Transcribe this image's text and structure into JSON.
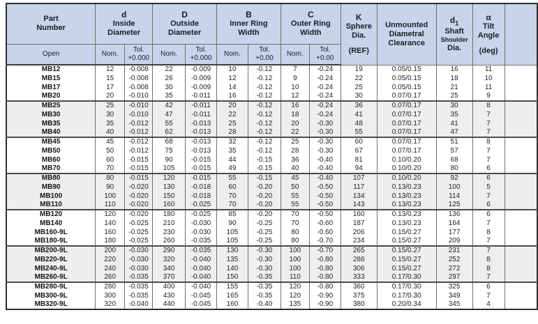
{
  "table": {
    "columns": {
      "part": {
        "title_line1": "Part",
        "title_line2": "Number",
        "sub": "Open"
      },
      "d": {
        "symbol": "d",
        "name_line1": "Inside",
        "name_line2": "Diameter",
        "nom": "Nom.",
        "tol_line1": "Tol.",
        "tol_line2": "+0.000"
      },
      "od": {
        "symbol": "D",
        "name_line1": "Outside",
        "name_line2": "Diameter",
        "nom": "Nom.",
        "tol_line1": "Tol.",
        "tol_line2": "+0.000"
      },
      "b": {
        "symbol": "B",
        "name_line1": "Inner Ring",
        "name_line2": "Width",
        "nom": "Nom.",
        "tol_line1": "Tol.",
        "tol_line2": "+0.00"
      },
      "c": {
        "symbol": "C",
        "name_line1": "Outer Ring",
        "name_line2": "Width",
        "nom": "Nom.",
        "tol_line1": "Tol.",
        "tol_line2": "+0.00"
      },
      "k": {
        "symbol": "K",
        "line1": "Sphere",
        "line2": "Dia.",
        "ref": "(REF)"
      },
      "clearance": {
        "line1": "Unmounted",
        "line2": "Diametral",
        "line3": "Clearance"
      },
      "d1": {
        "symbol": "d",
        "subscript": "1",
        "line1": "Shaft",
        "line2": "Shoulder",
        "line3": "Dia."
      },
      "alpha": {
        "symbol": "α",
        "line1": "Tilt",
        "line2": "Angle",
        "unit": "(deg)"
      }
    },
    "cell_keys": [
      "part",
      "d_nom",
      "d_tol",
      "od_nom",
      "od_tol",
      "b_nom",
      "b_tol",
      "c_nom",
      "c_tol",
      "k",
      "clearance",
      "d1",
      "alpha",
      "blank"
    ],
    "rows": [
      {
        "part": "MB12",
        "d_nom": "12",
        "d_tol": "-0.008",
        "od_nom": "22",
        "od_tol": "-0.009",
        "b_nom": "10",
        "b_tol": "-0.12",
        "c_nom": "7",
        "c_tol": "-0.24",
        "k": "19",
        "clearance": "0.05/0.15",
        "d1": "16",
        "alpha": "11",
        "blank": "",
        "shaded": false,
        "group_start": false
      },
      {
        "part": "MB15",
        "d_nom": "15",
        "d_tol": "-0.008",
        "od_nom": "26",
        "od_tol": "-0.009",
        "b_nom": "12",
        "b_tol": "-0.12",
        "c_nom": "9",
        "c_tol": "-0.24",
        "k": "22",
        "clearance": "0.05/0.15",
        "d1": "18",
        "alpha": "10",
        "blank": "",
        "shaded": false,
        "group_start": false
      },
      {
        "part": "MB17",
        "d_nom": "17",
        "d_tol": "-0.008",
        "od_nom": "30",
        "od_tol": "-0.009",
        "b_nom": "14",
        "b_tol": "-0.12",
        "c_nom": "10",
        "c_tol": "-0.24",
        "k": "25",
        "clearance": "0.05/0.15",
        "d1": "21",
        "alpha": "11",
        "blank": "",
        "shaded": false,
        "group_start": false
      },
      {
        "part": "MB20",
        "d_nom": "20",
        "d_tol": "-0.010",
        "od_nom": "35",
        "od_tol": "-0.011",
        "b_nom": "16",
        "b_tol": "-0.12",
        "c_nom": "12",
        "c_tol": "-0.24",
        "k": "30",
        "clearance": "0.07/0.17",
        "d1": "25",
        "alpha": "9",
        "blank": "",
        "shaded": false,
        "group_start": false
      },
      {
        "part": "MB25",
        "d_nom": "25",
        "d_tol": "-0.010",
        "od_nom": "42",
        "od_tol": "-0.011",
        "b_nom": "20",
        "b_tol": "-0.12",
        "c_nom": "16",
        "c_tol": "-0.24",
        "k": "36",
        "clearance": "0.07/0.17",
        "d1": "30",
        "alpha": "8",
        "blank": "",
        "shaded": true,
        "group_start": true
      },
      {
        "part": "MB30",
        "d_nom": "30",
        "d_tol": "-0.010",
        "od_nom": "47",
        "od_tol": "-0.011",
        "b_nom": "22",
        "b_tol": "-0.12",
        "c_nom": "18",
        "c_tol": "-0.24",
        "k": "41",
        "clearance": "0.07/0.17",
        "d1": "35",
        "alpha": "7",
        "blank": "",
        "shaded": true,
        "group_start": false
      },
      {
        "part": "MB35",
        "d_nom": "35",
        "d_tol": "-0.012",
        "od_nom": "55",
        "od_tol": "-0.013",
        "b_nom": "25",
        "b_tol": "-0.12",
        "c_nom": "20",
        "c_tol": "-0.30",
        "k": "48",
        "clearance": "0.07/0.17",
        "d1": "41",
        "alpha": "7",
        "blank": "",
        "shaded": true,
        "group_start": false
      },
      {
        "part": "MB40",
        "d_nom": "40",
        "d_tol": "-0.012",
        "od_nom": "62",
        "od_tol": "-0.013",
        "b_nom": "28",
        "b_tol": "-0.12",
        "c_nom": "22",
        "c_tol": "-0.30",
        "k": "55",
        "clearance": "0.07/0.17",
        "d1": "47",
        "alpha": "7",
        "blank": "",
        "shaded": true,
        "group_start": false
      },
      {
        "part": "MB45",
        "d_nom": "45",
        "d_tol": "-0.012",
        "od_nom": "68",
        "od_tol": "-0.013",
        "b_nom": "32",
        "b_tol": "-0.12",
        "c_nom": "25",
        "c_tol": "-0.30",
        "k": "60",
        "clearance": "0.07/0.17",
        "d1": "51",
        "alpha": "8",
        "blank": "",
        "shaded": false,
        "group_start": true
      },
      {
        "part": "MB50",
        "d_nom": "50",
        "d_tol": "-0.012",
        "od_nom": "75",
        "od_tol": "-0.013",
        "b_nom": "35",
        "b_tol": "-0.12",
        "c_nom": "28",
        "c_tol": "-0.30",
        "k": "67",
        "clearance": "0.07/0.17",
        "d1": "57",
        "alpha": "7",
        "blank": "",
        "shaded": false,
        "group_start": false
      },
      {
        "part": "MB60",
        "d_nom": "60",
        "d_tol": "-0.015",
        "od_nom": "90",
        "od_tol": "-0.015",
        "b_nom": "44",
        "b_tol": "-0.15",
        "c_nom": "36",
        "c_tol": "-0.40",
        "k": "81",
        "clearance": "0.10/0.20",
        "d1": "68",
        "alpha": "7",
        "blank": "",
        "shaded": false,
        "group_start": false
      },
      {
        "part": "MB70",
        "d_nom": "70",
        "d_tol": "-0.015",
        "od_nom": "105",
        "od_tol": "-0.015",
        "b_nom": "49",
        "b_tol": "-0.15",
        "c_nom": "40",
        "c_tol": "-0.40",
        "k": "94",
        "clearance": "0.10/0.20",
        "d1": "80",
        "alpha": "6",
        "blank": "",
        "shaded": false,
        "group_start": false
      },
      {
        "part": "MB80",
        "d_nom": "80",
        "d_tol": "-0.015",
        "od_nom": "120",
        "od_tol": "-0.015",
        "b_nom": "55",
        "b_tol": "-0.15",
        "c_nom": "45",
        "c_tol": "-0.40",
        "k": "107",
        "clearance": "0.10/0.20",
        "d1": "92",
        "alpha": "6",
        "blank": "",
        "shaded": true,
        "group_start": true
      },
      {
        "part": "MB90",
        "d_nom": "90",
        "d_tol": "-0.020",
        "od_nom": "130",
        "od_tol": "-0.018",
        "b_nom": "60",
        "b_tol": "-0.20",
        "c_nom": "50",
        "c_tol": "-0.50",
        "k": "117",
        "clearance": "0.13/0.23",
        "d1": "100",
        "alpha": "5",
        "blank": "",
        "shaded": true,
        "group_start": false
      },
      {
        "part": "MB100",
        "d_nom": "100",
        "d_tol": "-0.020",
        "od_nom": "150",
        "od_tol": "-0.018",
        "b_nom": "70",
        "b_tol": "-0.20",
        "c_nom": "55",
        "c_tol": "-0.50",
        "k": "134",
        "clearance": "0.13/0.23",
        "d1": "114",
        "alpha": "7",
        "blank": "",
        "shaded": true,
        "group_start": false
      },
      {
        "part": "MB110",
        "d_nom": "110",
        "d_tol": "-0.020",
        "od_nom": "160",
        "od_tol": "-0.025",
        "b_nom": "70",
        "b_tol": "-0.20",
        "c_nom": "55",
        "c_tol": "-0.50",
        "k": "143",
        "clearance": "0.13/0.23",
        "d1": "125",
        "alpha": "6",
        "blank": "",
        "shaded": true,
        "group_start": false
      },
      {
        "part": "MB120",
        "d_nom": "120",
        "d_tol": "-0.020",
        "od_nom": "180",
        "od_tol": "-0.025",
        "b_nom": "85",
        "b_tol": "-0.20",
        "c_nom": "70",
        "c_tol": "-0.50",
        "k": "160",
        "clearance": "0.13/0.23",
        "d1": "136",
        "alpha": "6",
        "blank": "",
        "shaded": false,
        "group_start": true
      },
      {
        "part": "MB140",
        "d_nom": "140",
        "d_tol": "-0.025",
        "od_nom": "210",
        "od_tol": "-0.030",
        "b_nom": "90",
        "b_tol": "-0.25",
        "c_nom": "70",
        "c_tol": "-0.60",
        "k": "187",
        "clearance": "0.13/0.23",
        "d1": "164",
        "alpha": "7",
        "blank": "",
        "shaded": false,
        "group_start": false
      },
      {
        "part": "MB160-9L",
        "d_nom": "160",
        "d_tol": "-0.025",
        "od_nom": "230",
        "od_tol": "-0.030",
        "b_nom": "105",
        "b_tol": "-0.25",
        "c_nom": "80",
        "c_tol": "-0.60",
        "k": "206",
        "clearance": "0.15/0.27",
        "d1": "177",
        "alpha": "8",
        "blank": "",
        "shaded": false,
        "group_start": false
      },
      {
        "part": "MB180-9L",
        "d_nom": "180",
        "d_tol": "-0.025",
        "od_nom": "260",
        "od_tol": "-0.035",
        "b_nom": "105",
        "b_tol": "-0.25",
        "c_nom": "80",
        "c_tol": "-0.70",
        "k": "234",
        "clearance": "0.15/0.27",
        "d1": "209",
        "alpha": "7",
        "blank": "",
        "shaded": false,
        "group_start": false
      },
      {
        "part": "MB200-9L",
        "d_nom": "200",
        "d_tol": "-0.030",
        "od_nom": "290",
        "od_tol": "-0.035",
        "b_nom": "130",
        "b_tol": "-0.30",
        "c_nom": "100",
        "c_tol": "-0.70",
        "k": "265",
        "clearance": "0.15/0.27",
        "d1": "231",
        "alpha": "7",
        "blank": "",
        "shaded": true,
        "group_start": true
      },
      {
        "part": "MB220-9L",
        "d_nom": "220",
        "d_tol": "-0.030",
        "od_nom": "320",
        "od_tol": "-0.040",
        "b_nom": "135",
        "b_tol": "-0.30",
        "c_nom": "100",
        "c_tol": "-0.80",
        "k": "286",
        "clearance": "0.15/0.27",
        "d1": "252",
        "alpha": "8",
        "blank": "",
        "shaded": true,
        "group_start": false
      },
      {
        "part": "MB240-9L",
        "d_nom": "240",
        "d_tol": "-0.030",
        "od_nom": "340",
        "od_tol": "-0.040",
        "b_nom": "140",
        "b_tol": "-0.30",
        "c_nom": "100",
        "c_tol": "-0.80",
        "k": "306",
        "clearance": "0.15/0.27",
        "d1": "272",
        "alpha": "8",
        "blank": "",
        "shaded": true,
        "group_start": false
      },
      {
        "part": "MB260-9L",
        "d_nom": "260",
        "d_tol": "-0.035",
        "od_nom": "370",
        "od_tol": "-0.040",
        "b_nom": "150",
        "b_tol": "-0.35",
        "c_nom": "110",
        "c_tol": "-0.80",
        "k": "333",
        "clearance": "0.17/0.30",
        "d1": "297",
        "alpha": "7",
        "blank": "",
        "shaded": true,
        "group_start": false
      },
      {
        "part": "MB280-9L",
        "d_nom": "280",
        "d_tol": "-0.035",
        "od_nom": "400",
        "od_tol": "-0.040",
        "b_nom": "155",
        "b_tol": "-0.35",
        "c_nom": "120",
        "c_tol": "-0.80",
        "k": "360",
        "clearance": "0.17/0.30",
        "d1": "325",
        "alpha": "6",
        "blank": "",
        "shaded": false,
        "group_start": true
      },
      {
        "part": "MB300-9L",
        "d_nom": "300",
        "d_tol": "-0.035",
        "od_nom": "430",
        "od_tol": "-0.045",
        "b_nom": "165",
        "b_tol": "-0.35",
        "c_nom": "120",
        "c_tol": "-0.90",
        "k": "375",
        "clearance": "0.17/0.30",
        "d1": "349",
        "alpha": "7",
        "blank": "",
        "shaded": false,
        "group_start": false
      },
      {
        "part": "MB320-9L",
        "d_nom": "320",
        "d_tol": "-0.040",
        "od_nom": "440",
        "od_tol": "-0.045",
        "b_nom": "160",
        "b_tol": "-0.40",
        "c_nom": "135",
        "c_tol": "-0.90",
        "k": "380",
        "clearance": "0.20/0.34",
        "d1": "345",
        "alpha": "4",
        "blank": "",
        "shaded": false,
        "group_start": false
      }
    ]
  },
  "colors": {
    "header_background": "#c8d4e9",
    "shaded_row_background": "#eeeef1",
    "grid_line": "#6f6f6f",
    "group_separator": "#4a4a4a",
    "outer_border": "#2e2e2e"
  }
}
